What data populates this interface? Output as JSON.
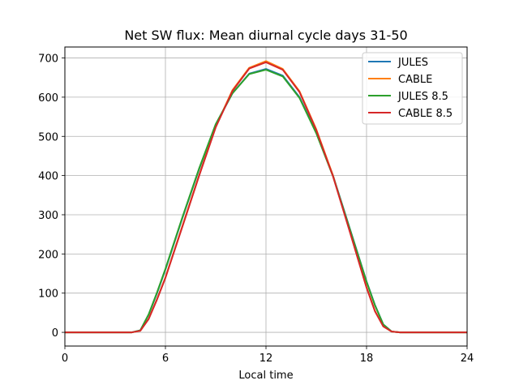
{
  "chart_data": {
    "type": "line",
    "title": "Net SW flux: Mean diurnal cycle days 31-50",
    "xlabel": "Local time",
    "ylabel": "",
    "xlim": [
      0,
      24
    ],
    "ylim": [
      -35,
      728
    ],
    "xticks": [
      0,
      6,
      12,
      18,
      24
    ],
    "yticks": [
      0,
      100,
      200,
      300,
      400,
      500,
      600,
      700
    ],
    "grid": true,
    "legend_position": "top-right",
    "series": [
      {
        "name": "JULES",
        "color": "#1f77b4",
        "x": [
          0,
          4.0,
          4.5,
          5.0,
          5.5,
          6.0,
          7.0,
          8.0,
          9.0,
          10.0,
          11.0,
          12.0,
          13.0,
          14.0,
          15.0,
          16.0,
          17.0,
          18.0,
          18.5,
          19.0,
          19.5,
          20.0,
          24
        ],
        "y": [
          0,
          0,
          5,
          45,
          100,
          160,
          290,
          415,
          530,
          610,
          660,
          672,
          655,
          600,
          510,
          400,
          265,
          130,
          70,
          20,
          2,
          0,
          0
        ]
      },
      {
        "name": "CABLE",
        "color": "#ff7f0e",
        "x": [
          0,
          4.0,
          4.5,
          5.0,
          5.5,
          6.0,
          7.0,
          8.0,
          9.0,
          10.0,
          11.0,
          12.0,
          13.0,
          14.0,
          15.0,
          16.0,
          17.0,
          18.0,
          18.5,
          19.0,
          19.5,
          20.0,
          24
        ],
        "y": [
          0,
          0,
          4,
          35,
          85,
          140,
          270,
          400,
          525,
          618,
          675,
          692,
          672,
          615,
          518,
          400,
          258,
          115,
          55,
          15,
          2,
          0,
          0
        ]
      },
      {
        "name": "JULES 8.5",
        "color": "#2ca02c",
        "x": [
          0,
          4.0,
          4.5,
          5.0,
          5.5,
          6.0,
          7.0,
          8.0,
          9.0,
          10.0,
          11.0,
          12.0,
          13.0,
          14.0,
          15.0,
          16.0,
          17.0,
          18.0,
          18.5,
          19.0,
          19.5,
          20.0,
          24
        ],
        "y": [
          0,
          0,
          5,
          46,
          102,
          162,
          292,
          417,
          531,
          610,
          659,
          670,
          653,
          598,
          508,
          398,
          264,
          129,
          69,
          20,
          2,
          0,
          0
        ]
      },
      {
        "name": "CABLE 8.5",
        "color": "#d62728",
        "x": [
          0,
          4.0,
          4.5,
          5.0,
          5.5,
          6.0,
          7.0,
          8.0,
          9.0,
          10.0,
          11.0,
          12.0,
          13.0,
          14.0,
          15.0,
          16.0,
          17.0,
          18.0,
          18.5,
          19.0,
          19.5,
          20.0,
          24
        ],
        "y": [
          0,
          0,
          4,
          34,
          84,
          139,
          268,
          398,
          523,
          616,
          673,
          689,
          670,
          613,
          516,
          398,
          257,
          114,
          54,
          15,
          2,
          0,
          0
        ]
      }
    ]
  }
}
